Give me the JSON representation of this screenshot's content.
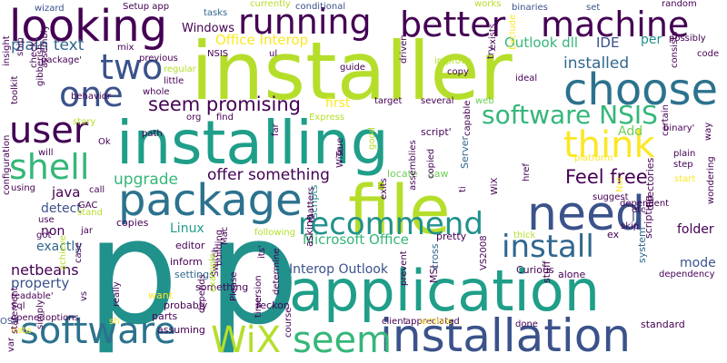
{
  "palette": {
    "background": "#ffffff",
    "dark_purple": "#440154",
    "indigo": "#3b528b",
    "slate_blue": "#31688e",
    "teal_blue": "#2c728e",
    "teal": "#21918c",
    "sea_green": "#1f9e89",
    "green": "#35b779",
    "light_green": "#6ece58",
    "lime": "#b5de2b",
    "yellow": "#fde725"
  },
  "words": [
    {
      "text": "p",
      "color": "#21918c"
    },
    {
      "text": "p",
      "color": "#21918c"
    },
    {
      "text": "installer",
      "color": "#b5de2b"
    },
    {
      "text": "installing",
      "color": "#1f9e89"
    },
    {
      "text": "application",
      "color": "#1f9e89"
    },
    {
      "text": "installation",
      "color": "#3b528b"
    },
    {
      "text": "file",
      "color": "#b5de2b"
    },
    {
      "text": "package",
      "color": "#2c728e"
    },
    {
      "text": "need",
      "color": "#3b528b"
    },
    {
      "text": "software",
      "color": "#2c728e"
    },
    {
      "text": "WiX",
      "color": "#b5de2b"
    },
    {
      "text": "seem",
      "color": "#35b779"
    },
    {
      "text": "choose",
      "color": "#2c728e"
    },
    {
      "text": "better",
      "color": "#440154"
    },
    {
      "text": "machine",
      "color": "#440154"
    },
    {
      "text": "running",
      "color": "#440154"
    },
    {
      "text": "looking",
      "color": "#440154"
    },
    {
      "text": "user",
      "color": "#440154"
    },
    {
      "text": "shell",
      "color": "#35b779"
    },
    {
      "text": "one",
      "color": "#3b528b"
    },
    {
      "text": "two",
      "color": "#3b528b"
    },
    {
      "text": "think",
      "color": "#fde725"
    },
    {
      "text": "recommend",
      "color": "#21918c"
    },
    {
      "text": "install",
      "color": "#31688e"
    },
    {
      "text": "software NSIS",
      "color": "#35b779"
    },
    {
      "text": "seem promising",
      "color": "#440154"
    },
    {
      "text": "Feel free",
      "color": "#440154"
    },
    {
      "text": "installed",
      "color": "#31688e"
    },
    {
      "text": "offer something",
      "color": "#440154"
    },
    {
      "text": "upgrade",
      "color": "#35b779"
    },
    {
      "text": "plain text",
      "color": "#31688e"
    },
    {
      "text": "Office Interop",
      "color": "#fde725"
    },
    {
      "text": "Outlook dll",
      "color": "#35b779"
    },
    {
      "text": "Microsoft Office",
      "color": "#35b779"
    },
    {
      "text": "Interop Outlook",
      "color": "#3b528b"
    },
    {
      "text": "netbeans",
      "color": "#440154"
    },
    {
      "text": "property",
      "color": "#3b528b"
    },
    {
      "text": "java",
      "color": "#440154"
    },
    {
      "text": "detect",
      "color": "#3b528b"
    },
    {
      "text": "non",
      "color": "#440154"
    },
    {
      "text": "exactly",
      "color": "#31688e"
    },
    {
      "text": "Linux",
      "color": "#1f9e89"
    },
    {
      "text": "mode",
      "color": "#3b528b"
    },
    {
      "text": "folder",
      "color": "#440154"
    },
    {
      "text": "Add",
      "color": "#6ece58"
    },
    {
      "text": "per",
      "color": "#21918c"
    },
    {
      "text": "IDE",
      "color": "#3b528b"
    },
    {
      "text": "li",
      "color": "#3b528b"
    },
    {
      "text": "Windows",
      "color": "#440154"
    },
    {
      "text": "wizard",
      "color": "#3b528b"
    },
    {
      "text": "Setup app",
      "color": "#440154"
    },
    {
      "text": "tasks",
      "color": "#31688e"
    },
    {
      "text": "currently",
      "color": "#b5de2b"
    },
    {
      "text": "conditional",
      "color": "#3b528b"
    },
    {
      "text": "binaries",
      "color": "#3b528b"
    },
    {
      "text": "random",
      "color": "#440154"
    },
    {
      "text": "works",
      "color": "#b5de2b"
    },
    {
      "text": "set",
      "color": "#3b528b"
    },
    {
      "text": "MSI",
      "color": "#440154"
    },
    {
      "text": "cross",
      "color": "#31688e"
    },
    {
      "text": "VS2008",
      "color": "#440154"
    },
    {
      "text": "Curious",
      "color": "#440154"
    },
    {
      "text": "alone",
      "color": "#440154"
    },
    {
      "text": "stuff",
      "color": "#440154"
    },
    {
      "text": "system",
      "color": "#31688e"
    },
    {
      "text": "standard",
      "color": "#440154"
    },
    {
      "text": "scripting",
      "color": "#440154"
    },
    {
      "text": "directories",
      "color": "#440154"
    },
    {
      "text": "ex",
      "color": "#440154"
    },
    {
      "text": "dependency",
      "color": "#440154"
    },
    {
      "text": "pretty",
      "color": "#440154"
    },
    {
      "text": "thick",
      "color": "#b5de2b"
    },
    {
      "text": "Server",
      "color": "#31688e"
    },
    {
      "text": "scripts",
      "color": "#21918c"
    },
    {
      "text": "asking",
      "color": "#440154"
    },
    {
      "text": "locate",
      "color": "#6ece58"
    },
    {
      "text": "saw",
      "color": "#6ece58"
    },
    {
      "text": "script'",
      "color": "#440154"
    },
    {
      "text": "editor",
      "color": "#440154"
    },
    {
      "text": "inform",
      "color": "#440154"
    },
    {
      "text": "settings",
      "color": "#31688e"
    },
    {
      "text": "want",
      "color": "#fde725"
    },
    {
      "text": "something",
      "color": "#440154"
    },
    {
      "text": "probably",
      "color": "#440154"
    },
    {
      "text": "parts",
      "color": "#440154"
    },
    {
      "text": "assuming",
      "color": "#440154"
    },
    {
      "text": "reckon",
      "color": "#440154"
    },
    {
      "text": "options",
      "color": "#440154"
    },
    {
      "text": "opened",
      "color": "#440154"
    },
    {
      "text": "Sql",
      "color": "#440154"
    },
    {
      "text": "readable'",
      "color": "#440154"
    },
    {
      "text": "sh",
      "color": "#fde725"
    },
    {
      "text": "data",
      "color": "#fde725"
    },
    {
      "text": "OSX",
      "color": "#3b528b"
    },
    {
      "text": "copies",
      "color": "#440154"
    },
    {
      "text": "GAC",
      "color": "#440154"
    },
    {
      "text": "jar",
      "color": "#440154"
    },
    {
      "text": "use",
      "color": "#440154"
    },
    {
      "text": "got",
      "color": "#440154"
    },
    {
      "text": "stand",
      "color": "#b5de2b"
    },
    {
      "text": "call",
      "color": "#440154"
    },
    {
      "text": "using",
      "color": "#440154"
    },
    {
      "text": "will",
      "color": "#440154"
    },
    {
      "text": "Ok",
      "color": "#440154"
    },
    {
      "text": "path",
      "color": "#440154"
    },
    {
      "text": "whole",
      "color": "#440154"
    },
    {
      "text": "ideal",
      "color": "#440154"
    },
    {
      "text": "target",
      "color": "#440154"
    },
    {
      "text": "several",
      "color": "#440154"
    },
    {
      "text": "web",
      "color": "#6ece58"
    },
    {
      "text": "first",
      "color": "#fde725"
    },
    {
      "text": "good",
      "color": "#b5de2b"
    },
    {
      "text": "platform",
      "color": "#fde725"
    },
    {
      "text": "binary'",
      "color": "#440154"
    },
    {
      "text": "plain",
      "color": "#440154"
    },
    {
      "text": "step",
      "color": "#440154"
    },
    {
      "text": "start",
      "color": "#fde725"
    },
    {
      "text": "code",
      "color": "#440154"
    },
    {
      "text": "possibly",
      "color": "#440154"
    },
    {
      "text": "consists",
      "color": "#440154"
    },
    {
      "text": "assembly",
      "color": "#440154"
    },
    {
      "text": "package'",
      "color": "#440154"
    },
    {
      "text": "mix",
      "color": "#440154"
    },
    {
      "text": "gibberish",
      "color": "#440154"
    },
    {
      "text": "toolkit",
      "color": "#440154"
    },
    {
      "text": "ship",
      "color": "#440154"
    },
    {
      "text": "check",
      "color": "#440154"
    },
    {
      "text": "insight",
      "color": "#440154"
    },
    {
      "text": "configuration",
      "color": "#440154"
    },
    {
      "text": "statement",
      "color": "#440154"
    },
    {
      "text": "var",
      "color": "#440154"
    },
    {
      "text": "NSIS",
      "color": "#440154"
    },
    {
      "text": "previous",
      "color": "#440154"
    },
    {
      "text": "little",
      "color": "#440154"
    },
    {
      "text": "regular",
      "color": "#b5de2b"
    },
    {
      "text": "behavior",
      "color": "#440154"
    },
    {
      "text": "story",
      "color": "#b5de2b"
    },
    {
      "text": "org",
      "color": "#440154"
    },
    {
      "text": "find",
      "color": "#440154"
    },
    {
      "text": "Express",
      "color": "#b5de2b"
    },
    {
      "text": "driven",
      "color": "#440154"
    },
    {
      "text": "guide",
      "color": "#440154"
    },
    {
      "text": "improve",
      "color": "#b5de2b"
    },
    {
      "text": "copy",
      "color": "#440154"
    },
    {
      "text": "exists",
      "color": "#440154"
    },
    {
      "text": "Exclude",
      "color": "#fde725"
    },
    {
      "text": "try",
      "color": "#440154"
    },
    {
      "text": "ul",
      "color": "#440154"
    },
    {
      "text": "capable",
      "color": "#440154"
    },
    {
      "text": "far",
      "color": "#440154"
    },
    {
      "text": "True",
      "color": "#440154"
    },
    {
      "text": "Wise",
      "color": "#440154"
    },
    {
      "text": "copied",
      "color": "#440154"
    },
    {
      "text": "href",
      "color": "#440154"
    },
    {
      "text": "WiX",
      "color": "#440154"
    },
    {
      "text": "ti",
      "color": "#440154"
    },
    {
      "text": "suggest",
      "color": "#440154"
    },
    {
      "text": "Not",
      "color": "#fde725"
    },
    {
      "text": "dependent",
      "color": "#440154"
    },
    {
      "text": "etc",
      "color": "#440154"
    },
    {
      "text": "wondering",
      "color": "#440154"
    },
    {
      "text": "way",
      "color": "#440154"
    },
    {
      "text": "certain",
      "color": "#440154"
    },
    {
      "text": "skip",
      "color": "#440154"
    },
    {
      "text": "matters",
      "color": "#440154"
    },
    {
      "text": "following",
      "color": "#b5de2b"
    },
    {
      "text": "exits",
      "color": "#440154"
    },
    {
      "text": "assemblies",
      "color": "#440154"
    },
    {
      "text": "prevent",
      "color": "#440154"
    },
    {
      "text": "its'",
      "color": "#440154"
    },
    {
      "text": "building",
      "color": "#440154"
    },
    {
      "text": "Switch",
      "color": "#440154"
    },
    {
      "text": "Mac",
      "color": "#440154"
    },
    {
      "text": "case",
      "color": "#440154"
    },
    {
      "text": "achieve",
      "color": "#b5de2b"
    },
    {
      "text": "example",
      "color": "#b5de2b"
    },
    {
      "text": "Please",
      "color": "#440154"
    },
    {
      "text": "version",
      "color": "#440154"
    },
    {
      "text": "time",
      "color": "#440154"
    },
    {
      "text": "determine",
      "color": "#440154"
    },
    {
      "text": "depends",
      "color": "#440154"
    },
    {
      "text": "vs",
      "color": "#440154"
    },
    {
      "text": "simply",
      "color": "#440154"
    },
    {
      "text": "really",
      "color": "#440154"
    },
    {
      "text": "course",
      "color": "#440154"
    },
    {
      "text": "client",
      "color": "#440154"
    },
    {
      "text": "appreciated",
      "color": "#440154"
    },
    {
      "text": "done",
      "color": "#440154"
    },
    {
      "text": "actions",
      "color": "#fde725"
    }
  ]
}
